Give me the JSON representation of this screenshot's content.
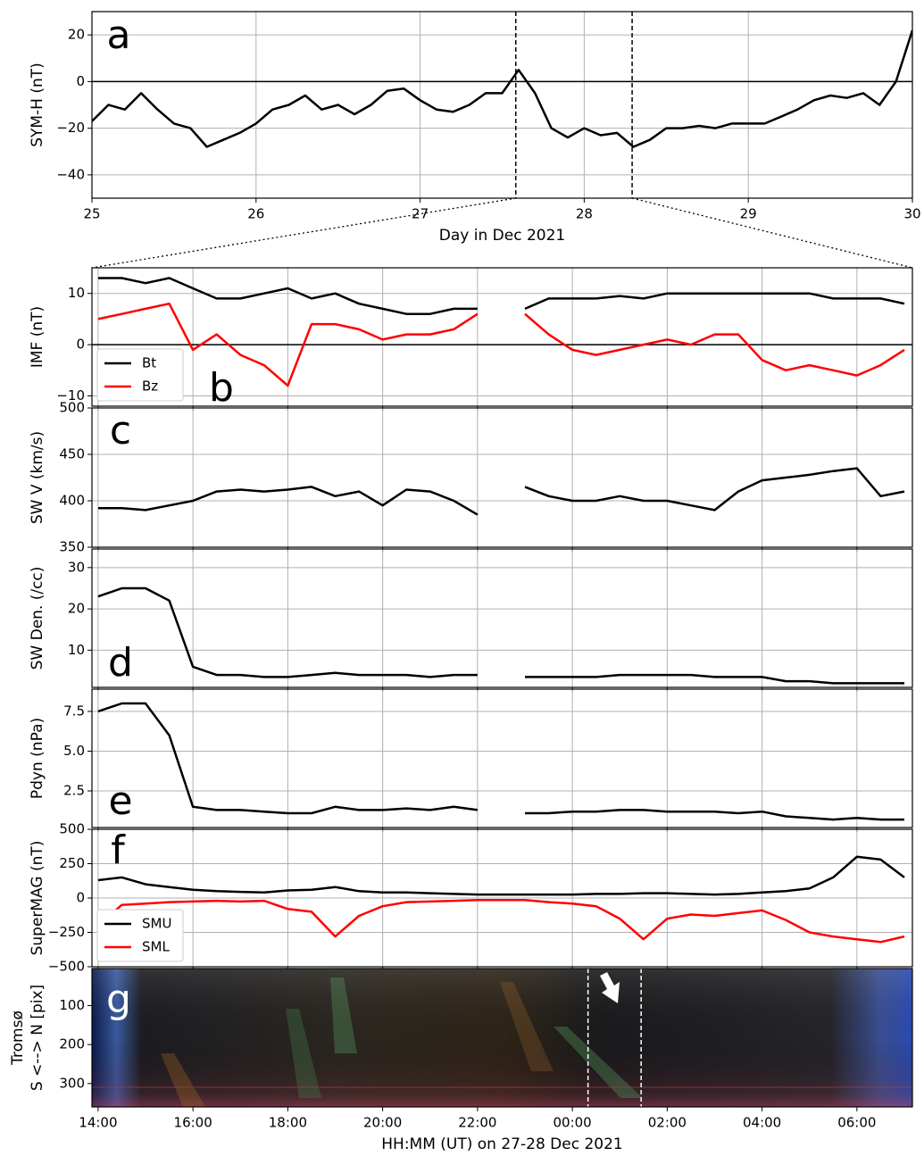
{
  "chart_data": [
    {
      "type": "line",
      "label": "a",
      "ylabel": "SYM-H (nT)",
      "xlabel": "Day in Dec 2021",
      "color": "#000000",
      "x": [
        25.0,
        25.1,
        25.2,
        25.3,
        25.4,
        25.5,
        25.6,
        25.7,
        25.8,
        25.9,
        26.0,
        26.1,
        26.2,
        26.3,
        26.4,
        26.5,
        26.6,
        26.7,
        26.8,
        26.9,
        27.0,
        27.1,
        27.2,
        27.3,
        27.4,
        27.5,
        27.6,
        27.7,
        27.8,
        27.9,
        28.0,
        28.1,
        28.2,
        28.3,
        28.4,
        28.5,
        28.6,
        28.7,
        28.8,
        28.9,
        29.0,
        29.1,
        29.2,
        29.3,
        29.4,
        29.5,
        29.6,
        29.7,
        29.8,
        29.9,
        30.0
      ],
      "values": [
        -17,
        -10,
        -12,
        -5,
        -12,
        -18,
        -20,
        -28,
        -25,
        -22,
        -18,
        -12,
        -10,
        -6,
        -12,
        -10,
        -14,
        -10,
        -4,
        -3,
        -8,
        -12,
        -13,
        -10,
        -5,
        -5,
        5,
        -5,
        -20,
        -24,
        -20,
        -23,
        -22,
        -28,
        -25,
        -20,
        -20,
        -19,
        -20,
        -18,
        -18,
        -18,
        -15,
        -12,
        -8,
        -6,
        -7,
        -5,
        -10,
        0,
        22
      ],
      "xlim": [
        25,
        30
      ],
      "xticks": [
        25,
        26,
        27,
        28,
        29,
        30
      ],
      "ylim": [
        -50,
        30
      ],
      "yticks": [
        {
          "value": -40,
          "label": "−40"
        },
        {
          "value": -20,
          "label": "−20"
        },
        0,
        20
      ],
      "grid": true,
      "hline": 0,
      "vlines": [
        27.583,
        28.292
      ]
    },
    {
      "type": "line",
      "label": "b",
      "ylabel": "IMF (nT)",
      "legend": "lower left",
      "x": [
        14,
        14.5,
        15,
        15.5,
        16,
        16.5,
        17,
        17.5,
        18,
        18.5,
        19,
        19.5,
        20,
        20.5,
        21,
        21.5,
        22,
        22.5,
        23,
        23.5,
        24,
        24.5,
        25,
        25.5,
        26,
        26.5,
        27,
        27.5,
        28,
        28.5,
        29,
        29.5,
        30,
        30.5,
        31
      ],
      "series": [
        {
          "name": "Bt",
          "color": "#000000",
          "values": [
            13,
            13,
            12,
            13,
            11,
            9,
            9,
            10,
            11,
            9,
            10,
            8,
            7,
            6,
            6,
            7,
            7,
            null,
            7,
            9,
            9,
            9,
            9.5,
            9,
            10,
            10,
            10,
            10,
            10,
            10,
            10,
            9,
            9,
            9,
            8
          ]
        },
        {
          "name": "Bz",
          "color": "#ff0000",
          "values": [
            5,
            6,
            7,
            8,
            -1,
            2,
            -2,
            -4,
            -8,
            4,
            4,
            3,
            1,
            2,
            2,
            3,
            6,
            null,
            6,
            2,
            -1,
            -2,
            -1,
            0,
            1,
            0,
            2,
            2,
            -3,
            -5,
            -4,
            -5,
            -6,
            -4,
            -1
          ]
        }
      ],
      "xlim": [
        13.87,
        31.17
      ],
      "ylim": [
        -12,
        15
      ],
      "yticks": [
        {
          "value": -10,
          "label": "−10"
        },
        0,
        10
      ],
      "grid": true,
      "hline": 0
    },
    {
      "type": "line",
      "label": "c",
      "ylabel": "SW V (km/s)",
      "color": "#000000",
      "x": [
        14,
        14.5,
        15,
        15.5,
        16,
        16.5,
        17,
        17.5,
        18,
        18.5,
        19,
        19.5,
        20,
        20.5,
        21,
        21.5,
        22,
        22.5,
        23,
        23.5,
        24,
        24.5,
        25,
        25.5,
        26,
        26.5,
        27,
        27.5,
        28,
        28.5,
        29,
        29.5,
        30,
        30.5,
        31
      ],
      "values": [
        392,
        392,
        390,
        395,
        400,
        410,
        412,
        410,
        412,
        415,
        405,
        410,
        395,
        412,
        410,
        400,
        385,
        null,
        415,
        405,
        400,
        400,
        405,
        400,
        400,
        395,
        390,
        410,
        422,
        425,
        428,
        432,
        435,
        405,
        410
      ],
      "xlim": [
        13.87,
        31.17
      ],
      "ylim": [
        350,
        500
      ],
      "yticks": [
        350,
        400,
        450,
        500
      ],
      "grid": true
    },
    {
      "type": "line",
      "label": "d",
      "ylabel": "SW Den. (/cc)",
      "color": "#000000",
      "x": [
        14,
        14.5,
        15,
        15.5,
        16,
        16.5,
        17,
        17.5,
        18,
        18.5,
        19,
        19.5,
        20,
        20.5,
        21,
        21.5,
        22,
        22.5,
        23,
        23.5,
        24,
        24.5,
        25,
        25.5,
        26,
        26.5,
        27,
        27.5,
        28,
        28.5,
        29,
        29.5,
        30,
        30.5,
        31
      ],
      "values": [
        23,
        25,
        25,
        22,
        6,
        4,
        4,
        3.5,
        3.5,
        4,
        4.5,
        4,
        4,
        4,
        3.5,
        4,
        4,
        null,
        3.5,
        3.5,
        3.5,
        3.5,
        4,
        4,
        4,
        4,
        3.5,
        3.5,
        3.5,
        2.5,
        2.5,
        2,
        2,
        2,
        2
      ],
      "xlim": [
        13.87,
        31.17
      ],
      "ylim": [
        1,
        34.5
      ],
      "yticks": [
        10,
        20,
        30
      ],
      "grid": true
    },
    {
      "type": "line",
      "label": "e",
      "ylabel": "Pdyn (nPa)",
      "color": "#000000",
      "x": [
        14,
        14.5,
        15,
        15.5,
        16,
        16.5,
        17,
        17.5,
        18,
        18.5,
        19,
        19.5,
        20,
        20.5,
        21,
        21.5,
        22,
        22.5,
        23,
        23.5,
        24,
        24.5,
        25,
        25.5,
        26,
        26.5,
        27,
        27.5,
        28,
        28.5,
        29,
        29.5,
        30,
        30.5,
        31
      ],
      "values": [
        7.5,
        8,
        8,
        6,
        1.5,
        1.3,
        1.3,
        1.2,
        1.1,
        1.1,
        1.5,
        1.3,
        1.3,
        1.4,
        1.3,
        1.5,
        1.3,
        null,
        1.1,
        1.1,
        1.2,
        1.2,
        1.3,
        1.3,
        1.2,
        1.2,
        1.2,
        1.1,
        1.2,
        0.9,
        0.8,
        0.7,
        0.8,
        0.7,
        0.7
      ],
      "xlim": [
        13.87,
        31.17
      ],
      "ylim": [
        0.2,
        8.9
      ],
      "yticks": [
        2.5,
        {
          "value": 5,
          "label": "5.0"
        },
        7.5
      ],
      "grid": true
    },
    {
      "type": "line",
      "label": "f",
      "ylabel": "SuperMAG (nT)",
      "legend": "lower left",
      "x": [
        14,
        14.5,
        15,
        15.5,
        16,
        16.5,
        17,
        17.5,
        18,
        18.5,
        19,
        19.5,
        20,
        20.5,
        21,
        21.5,
        22,
        22.5,
        23,
        23.5,
        24,
        24.5,
        25,
        25.5,
        26,
        26.5,
        27,
        27.5,
        28,
        28.5,
        29,
        29.5,
        30,
        30.5,
        31
      ],
      "series": [
        {
          "name": "SMU",
          "color": "#000000",
          "values": [
            130,
            150,
            100,
            80,
            60,
            50,
            45,
            40,
            55,
            60,
            80,
            50,
            40,
            40,
            35,
            30,
            25,
            25,
            25,
            25,
            25,
            30,
            30,
            35,
            35,
            30,
            25,
            30,
            40,
            50,
            70,
            150,
            300,
            280,
            150
          ]
        },
        {
          "name": "SML",
          "color": "#ff0000",
          "values": [
            -200,
            -50,
            -40,
            -30,
            -25,
            -20,
            -25,
            -20,
            -80,
            -100,
            -280,
            -130,
            -60,
            -30,
            -25,
            -20,
            -15,
            -15,
            -15,
            -30,
            -40,
            -60,
            -150,
            -300,
            -150,
            -120,
            -130,
            -110,
            -90,
            -160,
            -250,
            -280,
            -300,
            -320,
            -280
          ]
        }
      ],
      "xlim": [
        13.87,
        31.17
      ],
      "ylim": [
        -500,
        500
      ],
      "yticks": [
        {
          "value": -500,
          "label": "−500"
        },
        {
          "value": -250,
          "label": "−250"
        },
        0,
        250,
        500
      ],
      "grid": true
    },
    {
      "type": "image",
      "label": "g",
      "ylabel": [
        "Tromsø",
        "S <--> N [pix]"
      ],
      "xlabel": "HH:MM (UT) on 27-28 Dec 2021",
      "xlim": [
        13.87,
        31.17
      ],
      "xticks": [
        {
          "value": 14,
          "label": "14:00"
        },
        {
          "value": 16,
          "label": "16:00"
        },
        {
          "value": 18,
          "label": "18:00"
        },
        {
          "value": 20,
          "label": "20:00"
        },
        {
          "value": 22,
          "label": "22:00"
        },
        {
          "value": 24,
          "label": "00:00"
        },
        {
          "value": 26,
          "label": "02:00"
        },
        {
          "value": 28,
          "label": "04:00"
        },
        {
          "value": 30,
          "label": "06:00"
        }
      ],
      "ylim": [
        360,
        5
      ],
      "yticks": [
        100,
        200,
        300
      ],
      "vlines": [
        24.33,
        25.45
      ]
    }
  ]
}
